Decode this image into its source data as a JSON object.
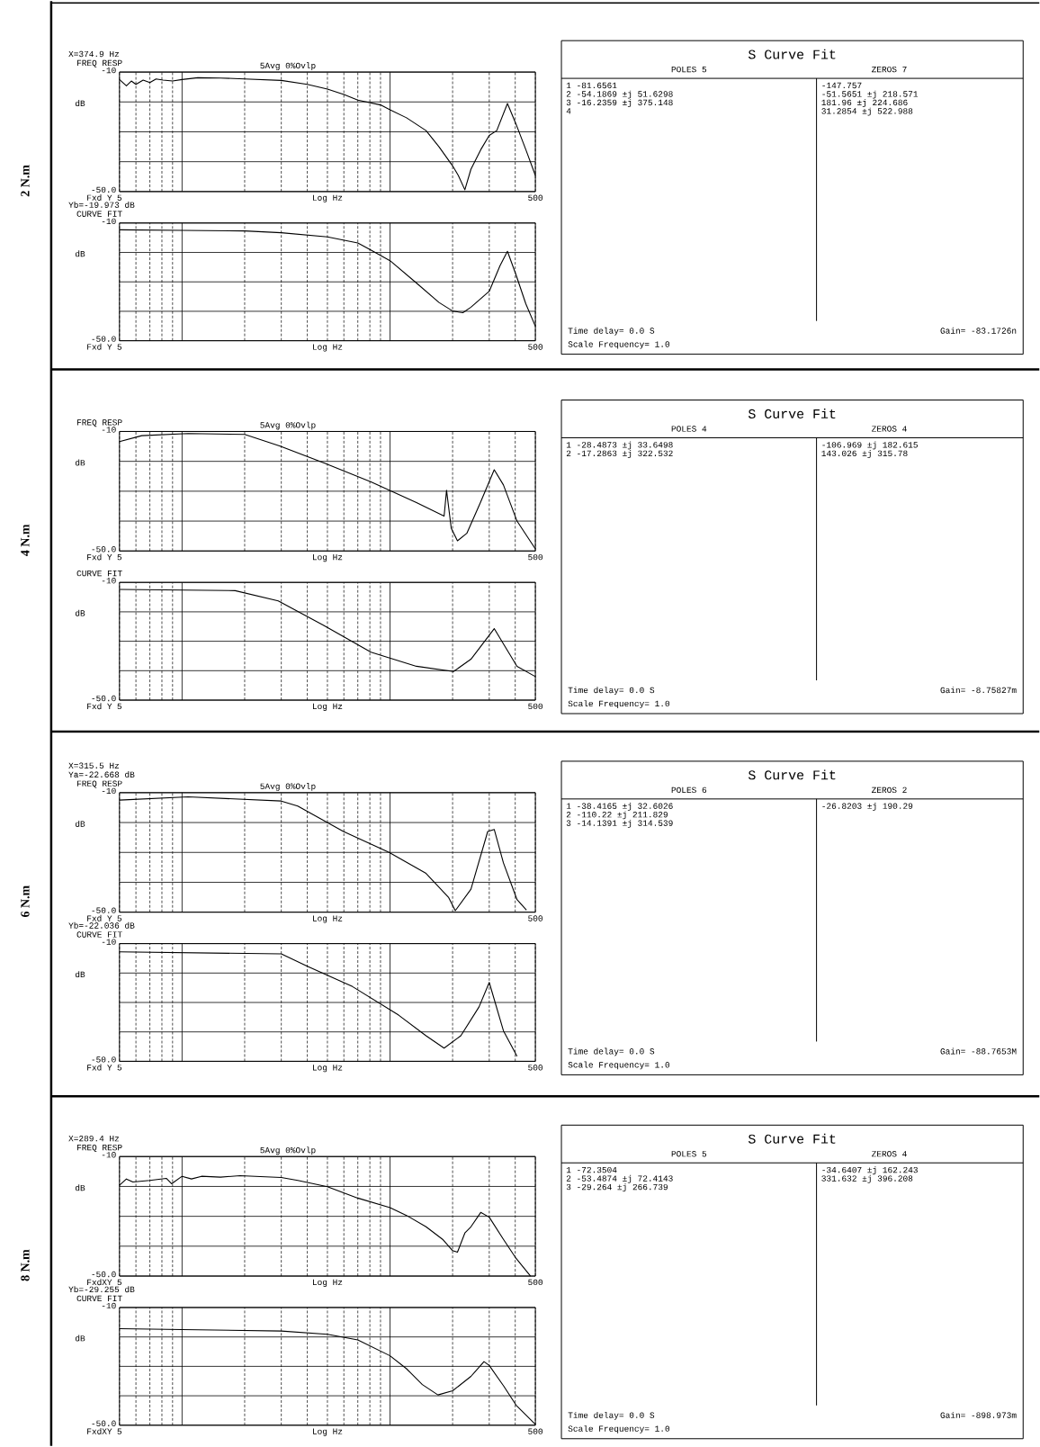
{
  "chart_data": [
    {
      "type": "other",
      "title": "2 N.m"
    },
    {
      "type": "line",
      "title": "FREQ RESP",
      "subtitle": "5Avg 0%Ovlp",
      "xlabel": "Log Hz",
      "ylabel": "dB",
      "annotations": [
        "Fxd Y",
        "X=374.9 Hz"
      ],
      "log": "x",
      "grid": true,
      "xlim": [
        5,
        500
      ],
      "ylim": [
        -50,
        -10
      ],
      "xticks": [
        5,
        {
          "value": 6,
          "label": null
        },
        {
          "value": 7,
          "label": null
        },
        {
          "value": 8,
          "label": null
        },
        {
          "value": 9,
          "label": null
        },
        {
          "value": 10,
          "label": null
        },
        {
          "value": 20,
          "label": null
        },
        {
          "value": 30,
          "label": null
        },
        {
          "value": 40,
          "label": null
        },
        {
          "value": 50,
          "label": null
        },
        {
          "value": 60,
          "label": null
        },
        {
          "value": 70,
          "label": null
        },
        {
          "value": 80,
          "label": null
        },
        {
          "value": 90,
          "label": null
        },
        {
          "value": 100,
          "label": null
        },
        {
          "value": 200,
          "label": null
        },
        {
          "value": 300,
          "label": null
        },
        {
          "value": 400,
          "label": null
        },
        500
      ],
      "yticks": [
        {
          "value": -50,
          "label": "-50.0"
        },
        {
          "value": -40,
          "label": null
        },
        {
          "value": -30,
          "label": null
        },
        {
          "value": -20,
          "label": null
        },
        -10
      ],
      "x": [
        5,
        5.4,
        5.7,
        6,
        6.5,
        7,
        7.5,
        8.1,
        9,
        10,
        11.9,
        15.3,
        20,
        30,
        40,
        50,
        60,
        70,
        90,
        100,
        120,
        149,
        172,
        200,
        213,
        229,
        245,
        273,
        300,
        326,
        367,
        404,
        450,
        500
      ],
      "values": [
        -12.5,
        -14.6,
        -13,
        -14.1,
        -12.7,
        -13.5,
        -12.3,
        -12.7,
        -13,
        -12.5,
        -11.9,
        -12,
        -12.3,
        -12.8,
        -14.1,
        -15.7,
        -17.5,
        -19.4,
        -21,
        -22.6,
        -25.3,
        -29.6,
        -35,
        -41.4,
        -44.6,
        -49.4,
        -42.5,
        -36,
        -31.2,
        -29.6,
        -20.5,
        -27.5,
        -36,
        -44.6
      ]
    },
    {
      "type": "line",
      "title": "CURVE FIT",
      "xlabel": "Log Hz",
      "ylabel": "dB",
      "annotations": [
        "Fxd Y",
        "Yb=-19.973 dB"
      ],
      "log": "x",
      "grid": true,
      "xlim": [
        5,
        500
      ],
      "ylim": [
        -50,
        -10
      ],
      "xticks": [
        5,
        {
          "value": 6,
          "label": null
        },
        {
          "value": 7,
          "label": null
        },
        {
          "value": 8,
          "label": null
        },
        {
          "value": 9,
          "label": null
        },
        {
          "value": 10,
          "label": null
        },
        {
          "value": 20,
          "label": null
        },
        {
          "value": 30,
          "label": null
        },
        {
          "value": 40,
          "label": null
        },
        {
          "value": 50,
          "label": null
        },
        {
          "value": 60,
          "label": null
        },
        {
          "value": 70,
          "label": null
        },
        {
          "value": 80,
          "label": null
        },
        {
          "value": 90,
          "label": null
        },
        {
          "value": 100,
          "label": null
        },
        {
          "value": 200,
          "label": null
        },
        {
          "value": 300,
          "label": null
        },
        {
          "value": 400,
          "label": null
        },
        500
      ],
      "yticks": [
        {
          "value": -50,
          "label": "-50.0"
        },
        {
          "value": -40,
          "label": null
        },
        {
          "value": -30,
          "label": null
        },
        {
          "value": -20,
          "label": null
        },
        -10
      ],
      "x": [
        5,
        10,
        20,
        30,
        50,
        70,
        80,
        100,
        134,
        172,
        200,
        224,
        245,
        300,
        338,
        367,
        404,
        450,
        500
      ],
      "values": [
        -12.3,
        -12.5,
        -12.7,
        -13.3,
        -14.7,
        -16.8,
        -19,
        -22.8,
        -30.4,
        -37,
        -39.9,
        -40.5,
        -38.6,
        -33.2,
        -24.5,
        -19.6,
        -27.7,
        -37.5,
        -45.1
      ]
    },
    {
      "type": "other",
      "title": "S Curve Fit",
      "xlabel": "POLES 5",
      "y2label": "ZEROS 7",
      "categories": [
        "1 -81.6561",
        "2 -54.1869 ±j 51.6298",
        "3 -16.2359 ±j 375.148",
        "4"
      ],
      "y2_categories": [
        "-147.757",
        "-51.5651 ±j 218.571",
        "181.96 ±j 224.686",
        "31.2854 ±j 522.988"
      ],
      "annotations": [
        "Time delay= 0.0 S",
        "Gain= -83.1726n",
        "Scale Frequency= 1.0"
      ]
    },
    {
      "type": "other",
      "title": "4 N.m"
    },
    {
      "type": "line",
      "title": "FREQ RESP",
      "subtitle": "5Avg 0%Ovlp",
      "xlabel": "Log Hz",
      "ylabel": "dB",
      "annotations": [
        "Fxd Y"
      ],
      "log": "x",
      "grid": true,
      "xlim": [
        5,
        500
      ],
      "ylim": [
        -50,
        -10
      ],
      "xticks": [
        5,
        {
          "value": 6,
          "label": null
        },
        {
          "value": 7,
          "label": null
        },
        {
          "value": 8,
          "label": null
        },
        {
          "value": 9,
          "label": null
        },
        {
          "value": 10,
          "label": null
        },
        {
          "value": 20,
          "label": null
        },
        {
          "value": 30,
          "label": null
        },
        {
          "value": 40,
          "label": null
        },
        {
          "value": 50,
          "label": null
        },
        {
          "value": 60,
          "label": null
        },
        {
          "value": 70,
          "label": null
        },
        {
          "value": 80,
          "label": null
        },
        {
          "value": 90,
          "label": null
        },
        {
          "value": 100,
          "label": null
        },
        {
          "value": 200,
          "label": null
        },
        {
          "value": 300,
          "label": null
        },
        {
          "value": 400,
          "label": null
        },
        500
      ],
      "yticks": [
        {
          "value": -50,
          "label": "-50.0"
        },
        {
          "value": -40,
          "label": null
        },
        {
          "value": -30,
          "label": null
        },
        {
          "value": -20,
          "label": null
        },
        -10
      ],
      "x": [
        5,
        6.4,
        10.7,
        20,
        29.4,
        48.8,
        81,
        134,
        182,
        187,
        197,
        211,
        234,
        272,
        317,
        351,
        408,
        500
      ],
      "values": [
        -13.4,
        -11.4,
        -10.7,
        -11,
        -14.8,
        -20.7,
        -26.9,
        -33.8,
        -38.3,
        -29.7,
        -42.4,
        -46.6,
        -44.1,
        -33.8,
        -22.8,
        -27.9,
        -40,
        -49.3
      ]
    },
    {
      "type": "line",
      "title": "CURVE FIT",
      "xlabel": "Log Hz",
      "ylabel": "dB",
      "annotations": [
        "Fxd Y"
      ],
      "log": "x",
      "grid": true,
      "xlim": [
        5,
        500
      ],
      "ylim": [
        -50,
        -10
      ],
      "xticks": [
        5,
        {
          "value": 6,
          "label": null
        },
        {
          "value": 7,
          "label": null
        },
        {
          "value": 8,
          "label": null
        },
        {
          "value": 9,
          "label": null
        },
        {
          "value": 10,
          "label": null
        },
        {
          "value": 20,
          "label": null
        },
        {
          "value": 30,
          "label": null
        },
        {
          "value": 40,
          "label": null
        },
        {
          "value": 50,
          "label": null
        },
        {
          "value": 60,
          "label": null
        },
        {
          "value": 70,
          "label": null
        },
        {
          "value": 80,
          "label": null
        },
        {
          "value": 90,
          "label": null
        },
        {
          "value": 100,
          "label": null
        },
        {
          "value": 200,
          "label": null
        },
        {
          "value": 300,
          "label": null
        },
        {
          "value": 400,
          "label": null
        },
        500
      ],
      "yticks": [
        {
          "value": -50,
          "label": "-50.0"
        },
        {
          "value": -40,
          "label": null
        },
        {
          "value": -30,
          "label": null
        },
        {
          "value": -20,
          "label": null
        },
        -10
      ],
      "x": [
        5,
        18,
        29,
        48,
        81,
        134,
        202,
        245,
        317,
        351,
        408,
        500
      ],
      "values": [
        -12.4,
        -12.8,
        -16.3,
        -24.6,
        -33.7,
        -38.5,
        -40.3,
        -36.1,
        -25.7,
        -30.9,
        -38.5,
        -42
      ]
    },
    {
      "type": "other",
      "title": "S Curve Fit",
      "xlabel": "POLES 4",
      "y2label": "ZEROS 4",
      "categories": [
        "1 -28.4873 ±j 33.6498",
        "2 -17.2863 ±j 322.532"
      ],
      "y2_categories": [
        "-106.969 ±j 182.615",
        "143.026 ±j 315.78"
      ],
      "annotations": [
        "Time delay= 0.0 S",
        "Gain= -8.75827m",
        "Scale Frequency= 1.0"
      ]
    },
    {
      "type": "other",
      "title": "6 N.m"
    },
    {
      "type": "line",
      "title": "FREQ RESP",
      "subtitle": "5Avg 0%Ovlp",
      "xlabel": "Log Hz",
      "ylabel": "dB",
      "annotations": [
        "Fxd Y",
        "X=315.5 Hz",
        "Ya=-22.668 dB"
      ],
      "log": "x",
      "grid": true,
      "xlim": [
        5,
        500
      ],
      "ylim": [
        -50,
        -10
      ],
      "xticks": [
        5,
        {
          "value": 6,
          "label": null
        },
        {
          "value": 7,
          "label": null
        },
        {
          "value": 8,
          "label": null
        },
        {
          "value": 9,
          "label": null
        },
        {
          "value": 10,
          "label": null
        },
        {
          "value": 20,
          "label": null
        },
        {
          "value": 30,
          "label": null
        },
        {
          "value": 40,
          "label": null
        },
        {
          "value": 50,
          "label": null
        },
        {
          "value": 60,
          "label": null
        },
        {
          "value": 70,
          "label": null
        },
        {
          "value": 80,
          "label": null
        },
        {
          "value": 90,
          "label": null
        },
        {
          "value": 100,
          "label": null
        },
        {
          "value": 200,
          "label": null
        },
        {
          "value": 300,
          "label": null
        },
        {
          "value": 400,
          "label": null
        },
        500
      ],
      "yticks": [
        {
          "value": -50,
          "label": "-50.0"
        },
        {
          "value": -40,
          "label": null
        },
        {
          "value": -30,
          "label": null
        },
        {
          "value": -20,
          "label": null
        },
        -10
      ],
      "x": [
        5,
        10.7,
        30,
        36,
        59.7,
        99,
        149,
        191,
        206,
        245,
        295,
        317,
        351,
        408,
        453
      ],
      "values": [
        -12.5,
        -11.4,
        -12.8,
        -14.5,
        -23,
        -30,
        -37,
        -45,
        -49.5,
        -42.3,
        -23,
        -22.3,
        -33.5,
        -45.8,
        -49.3
      ]
    },
    {
      "type": "line",
      "title": "CURVE FIT",
      "xlabel": "Log Hz",
      "ylabel": "dB",
      "annotations": [
        "Fxd Y",
        "Yb=-22.036 dB"
      ],
      "log": "x",
      "grid": true,
      "xlim": [
        5,
        500
      ],
      "ylim": [
        -50,
        -10
      ],
      "xticks": [
        5,
        {
          "value": 6,
          "label": null
        },
        {
          "value": 7,
          "label": null
        },
        {
          "value": 8,
          "label": null
        },
        {
          "value": 9,
          "label": null
        },
        {
          "value": 10,
          "label": null
        },
        {
          "value": 20,
          "label": null
        },
        {
          "value": 30,
          "label": null
        },
        {
          "value": 40,
          "label": null
        },
        {
          "value": 50,
          "label": null
        },
        {
          "value": 60,
          "label": null
        },
        {
          "value": 70,
          "label": null
        },
        {
          "value": 80,
          "label": null
        },
        {
          "value": 90,
          "label": null
        },
        {
          "value": 100,
          "label": null
        },
        {
          "value": 200,
          "label": null
        },
        {
          "value": 300,
          "label": null
        },
        {
          "value": 400,
          "label": null
        },
        500
      ],
      "yticks": [
        {
          "value": -50,
          "label": "-50.0"
        },
        {
          "value": -40,
          "label": null
        },
        {
          "value": -30,
          "label": null
        },
        {
          "value": -20,
          "label": null
        },
        -10
      ],
      "x": [
        5,
        30,
        40,
        66,
        110,
        149,
        182,
        219,
        268,
        300,
        351,
        408
      ],
      "values": [
        -12.8,
        -13.5,
        -17.7,
        -24.6,
        -34.3,
        -41.3,
        -45.5,
        -41.3,
        -31.5,
        -23.2,
        -39.6,
        -48.3
      ]
    },
    {
      "type": "other",
      "title": "S Curve Fit",
      "xlabel": "POLES 6",
      "y2label": "ZEROS 2",
      "categories": [
        "1 -38.4165 ±j 32.6026",
        "2 -110.22 ±j 211.829",
        "3 -14.1391 ±j 314.539"
      ],
      "y2_categories": [
        "-26.8203 ±j 190.29"
      ],
      "annotations": [
        "Time delay= 0.0 S",
        "Gain= -88.7653M",
        "Scale Frequency= 1.0"
      ]
    },
    {
      "type": "other",
      "title": "8 N.m"
    },
    {
      "type": "line",
      "title": "FREQ RESP",
      "subtitle": "5Avg 0%Ovlp",
      "xlabel": "Log Hz",
      "ylabel": "dB",
      "annotations": [
        "FxdXY",
        "X=289.4 Hz"
      ],
      "log": "x",
      "grid": true,
      "xlim": [
        5,
        500
      ],
      "ylim": [
        -50,
        -10
      ],
      "xticks": [
        5,
        {
          "value": 6,
          "label": null
        },
        {
          "value": 7,
          "label": null
        },
        {
          "value": 8,
          "label": null
        },
        {
          "value": 9,
          "label": null
        },
        {
          "value": 10,
          "label": null
        },
        {
          "value": 20,
          "label": null
        },
        {
          "value": 30,
          "label": null
        },
        {
          "value": 40,
          "label": null
        },
        {
          "value": 50,
          "label": null
        },
        {
          "value": 60,
          "label": null
        },
        {
          "value": 70,
          "label": null
        },
        {
          "value": 80,
          "label": null
        },
        {
          "value": 90,
          "label": null
        },
        {
          "value": 100,
          "label": null
        },
        {
          "value": 200,
          "label": null
        },
        {
          "value": 300,
          "label": null
        },
        {
          "value": 400,
          "label": null
        },
        500
      ],
      "yticks": [
        {
          "value": -50,
          "label": "-50.0"
        },
        {
          "value": -40,
          "label": null
        },
        {
          "value": -30,
          "label": null
        },
        {
          "value": -20,
          "label": null
        },
        -10
      ],
      "x": [
        5,
        5.4,
        5.8,
        7,
        8.4,
        8.9,
        10,
        11.1,
        12.4,
        15.3,
        19,
        25.2,
        30,
        36,
        50,
        70,
        100,
        120,
        149,
        179,
        200,
        211,
        229,
        245,
        273,
        300,
        351,
        404,
        474
      ],
      "values": [
        -19.6,
        -17.5,
        -18.5,
        -18,
        -17.3,
        -19.1,
        -16.6,
        -17.5,
        -16.6,
        -16.9,
        -16.4,
        -16.8,
        -17,
        -18,
        -20.1,
        -23.9,
        -27.1,
        -29.7,
        -33.5,
        -37.7,
        -41.5,
        -42,
        -35.6,
        -33.5,
        -28.7,
        -30.3,
        -37.7,
        -44.1,
        -50
      ]
    },
    {
      "type": "line",
      "title": "CURVE FIT",
      "xlabel": "Log Hz",
      "ylabel": "dB",
      "annotations": [
        "FxdXY",
        "Yb=-29.255 dB"
      ],
      "log": "x",
      "grid": true,
      "xlim": [
        5,
        500
      ],
      "ylim": [
        -50,
        -10
      ],
      "xticks": [
        5,
        {
          "value": 6,
          "label": null
        },
        {
          "value": 7,
          "label": null
        },
        {
          "value": 8,
          "label": null
        },
        {
          "value": 9,
          "label": null
        },
        {
          "value": 10,
          "label": null
        },
        {
          "value": 20,
          "label": null
        },
        {
          "value": 30,
          "label": null
        },
        {
          "value": 40,
          "label": null
        },
        {
          "value": 50,
          "label": null
        },
        {
          "value": 60,
          "label": null
        },
        {
          "value": 70,
          "label": null
        },
        {
          "value": 80,
          "label": null
        },
        {
          "value": 90,
          "label": null
        },
        {
          "value": 100,
          "label": null
        },
        {
          "value": 200,
          "label": null
        },
        {
          "value": 300,
          "label": null
        },
        {
          "value": 400,
          "label": null
        },
        500
      ],
      "yticks": [
        {
          "value": -50,
          "label": "-50.0"
        },
        {
          "value": -40,
          "label": null
        },
        {
          "value": -30,
          "label": null
        },
        {
          "value": -20,
          "label": null
        },
        -10
      ],
      "x": [
        5,
        10,
        30,
        50,
        70,
        100,
        120,
        143,
        170,
        200,
        245,
        283,
        300,
        352,
        404,
        500
      ],
      "values": [
        -17.2,
        -17.5,
        -18,
        -19.1,
        -21,
        -26.4,
        -30.8,
        -36.2,
        -39.7,
        -38.3,
        -33.4,
        -28.4,
        -29.7,
        -36.7,
        -43.2,
        -49.7
      ]
    },
    {
      "type": "other",
      "title": "S Curve Fit",
      "xlabel": "POLES 5",
      "y2label": "ZEROS 4",
      "categories": [
        "1 -72.3504",
        "2 -53.4874 ±j 72.4143",
        "3 -29.264 ±j 266.739"
      ],
      "y2_categories": [
        "-34.6407 ±j 162.243",
        "331.632 ±j 396.208"
      ],
      "annotations": [
        "Time delay= 0.0 S",
        "Gain= -898.973m",
        "Scale Frequency= 1.0"
      ]
    }
  ]
}
